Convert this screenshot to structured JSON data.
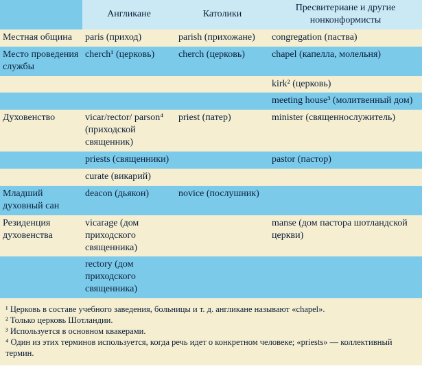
{
  "colors": {
    "row_blue": "#7ccaea",
    "row_cream": "#f6eed0",
    "head_cell": "#cbe9f5",
    "text": "#0a1f3a"
  },
  "header": {
    "c0": "",
    "c1": "Англикане",
    "c2": "Католики",
    "c3": "Пресвитериане и другие нонконформисты"
  },
  "rows": [
    {
      "tone": "cream",
      "c0": "Местная община",
      "c1": "paris (приход)",
      "c2": "parish (прихожане)",
      "c3": "congregation (паства)"
    },
    {
      "tone": "blue",
      "c0": "Место проведения службы",
      "c1": "cherch¹ (церковь)",
      "c2": "cherch (церковь)",
      "c3": "chapel (капелла, молельня)"
    },
    {
      "tone": "cream",
      "c0": "",
      "c1": "",
      "c2": "",
      "c3": "kirk² (церковь)"
    },
    {
      "tone": "blue",
      "c0": "",
      "c1": "",
      "c2": "",
      "c3": "meeting house³ (молитвенный дом)"
    },
    {
      "tone": "cream",
      "c0": "Духовенство",
      "c1": "vicar/rector/ parson⁴ (приходской священник)",
      "c2": "priest (патер)",
      "c3": "minister (священнослужитель)"
    },
    {
      "tone": "blue",
      "c0": "",
      "c1": "priests (священники)",
      "c2": "",
      "c3": "pastor (пастор)"
    },
    {
      "tone": "cream",
      "c0": "",
      "c1": "curate (викарий)",
      "c2": "",
      "c3": ""
    },
    {
      "tone": "blue",
      "c0": "Младший духовный сан",
      "c1": "deacon (дьякон)",
      "c2": "novice (послушник)",
      "c3": ""
    },
    {
      "tone": "cream",
      "c0": "Резиденция духовенства",
      "c1": "vicarage (дом приходского священника)",
      "c2": "",
      "c3": "manse (дом пастора шотландской церкви)"
    },
    {
      "tone": "blue",
      "c0": "",
      "c1": "rectory (дом приходского священника)",
      "c2": "",
      "c3": ""
    }
  ],
  "footnotes": {
    "n1": "¹ Церковь в составе учебного заведения, больницы и т. д. англикане называют «chapel».",
    "n2": "² Только церковь Шотландии.",
    "n3": "³ Используется в основном квакерами.",
    "n4": "⁴ Один из этих терминов используется, когда речь идет о конкретном человеке; «priests» — коллективный термин."
  }
}
